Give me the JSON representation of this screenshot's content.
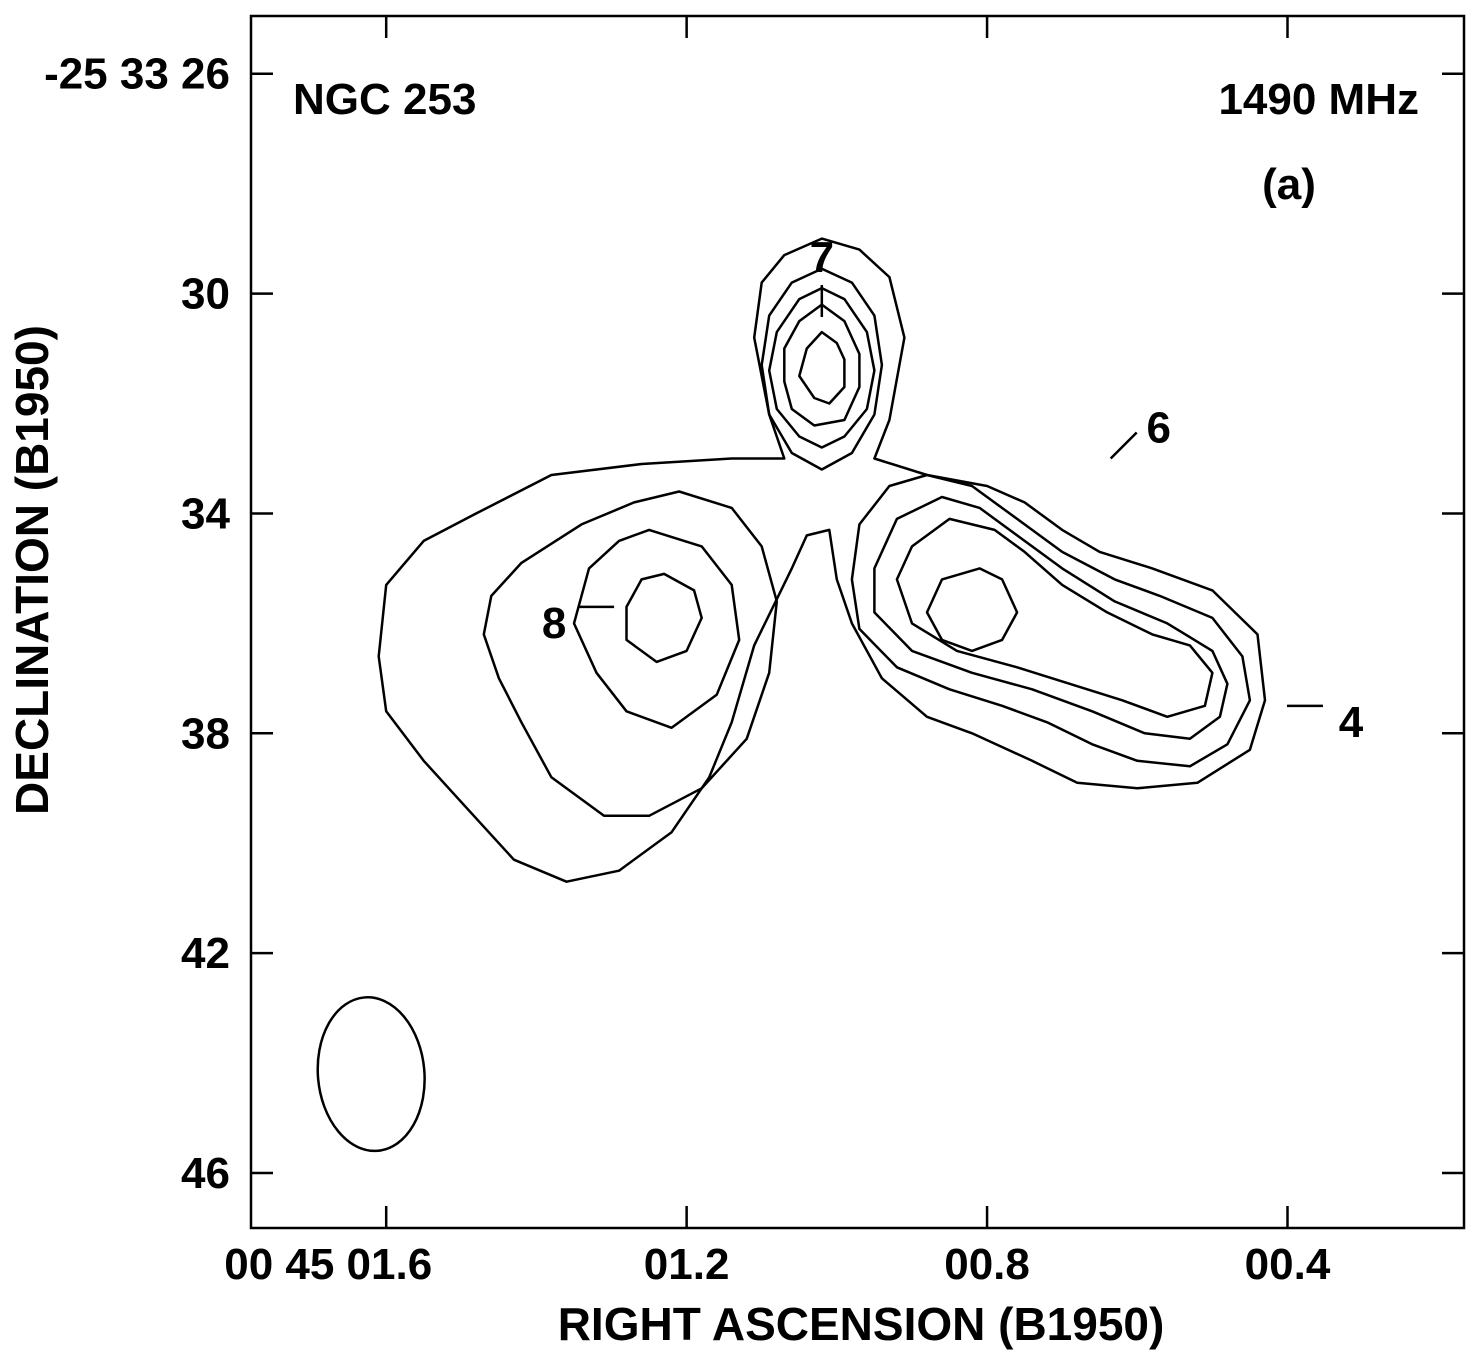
{
  "chart_data": {
    "type": "contour",
    "object_label": "NGC 253",
    "frequency_label": "1490 MHz",
    "panel_label": "(a)",
    "xlabel": "RIGHT ASCENSION (B1950)",
    "ylabel": "DECLINATION (B1950)",
    "x_ticks": [
      {
        "value": 1.6,
        "label": "00 45 01.6"
      },
      {
        "value": 1.2,
        "label": "01.2"
      },
      {
        "value": 0.8,
        "label": "00.8"
      },
      {
        "value": 0.4,
        "label": "00.4"
      }
    ],
    "y_ticks": [
      {
        "value": 26,
        "label": "-25 33 26"
      },
      {
        "value": 30,
        "label": "30"
      },
      {
        "value": 34,
        "label": "34"
      },
      {
        "value": 38,
        "label": "38"
      },
      {
        "value": 42,
        "label": "42"
      },
      {
        "value": 46,
        "label": "46"
      }
    ],
    "xlim": [
      1.78,
      0.165
    ],
    "ylim": [
      47.0,
      24.95
    ],
    "sources": [
      {
        "id": "7",
        "label": "7",
        "ra": 1.02,
        "dec": 31.3
      },
      {
        "id": "6",
        "label": "6",
        "ra": 0.67,
        "dec": 33.4
      },
      {
        "id": "8",
        "label": "8",
        "ra": 1.23,
        "dec": 35.7
      },
      {
        "id": "4",
        "label": "4",
        "ra": 0.43,
        "dec": 37.5
      }
    ],
    "beam": {
      "ra": 1.62,
      "dec": 44.2,
      "major_arcsec": 2.8,
      "minor_arcsec": 1.25,
      "pa_deg": 5
    },
    "contours": [
      {
        "level": 1,
        "points": [
          [
            1.07,
            33.0
          ],
          [
            1.09,
            32.2
          ],
          [
            1.11,
            30.8
          ],
          [
            1.1,
            29.8
          ],
          [
            1.07,
            29.3
          ],
          [
            1.02,
            29.0
          ],
          [
            0.97,
            29.2
          ],
          [
            0.93,
            29.7
          ],
          [
            0.91,
            30.8
          ],
          [
            0.93,
            32.3
          ],
          [
            0.95,
            33.0
          ],
          [
            0.88,
            33.3
          ],
          [
            0.8,
            33.5
          ],
          [
            0.75,
            33.8
          ],
          [
            0.7,
            34.3
          ],
          [
            0.65,
            34.7
          ],
          [
            0.58,
            35.0
          ],
          [
            0.5,
            35.4
          ],
          [
            0.44,
            36.2
          ],
          [
            0.43,
            37.4
          ],
          [
            0.45,
            38.3
          ],
          [
            0.52,
            38.9
          ],
          [
            0.6,
            39.0
          ],
          [
            0.68,
            38.9
          ],
          [
            0.74,
            38.5
          ],
          [
            0.82,
            38.0
          ],
          [
            0.88,
            37.7
          ],
          [
            0.94,
            37.0
          ],
          [
            0.98,
            36.0
          ],
          [
            1.0,
            35.2
          ],
          [
            1.01,
            34.3
          ],
          [
            1.04,
            34.4
          ],
          [
            1.06,
            35.0
          ],
          [
            1.11,
            36.4
          ],
          [
            1.14,
            37.8
          ],
          [
            1.17,
            38.8
          ],
          [
            1.22,
            39.8
          ],
          [
            1.29,
            40.5
          ],
          [
            1.36,
            40.7
          ],
          [
            1.43,
            40.3
          ],
          [
            1.49,
            39.4
          ],
          [
            1.55,
            38.5
          ],
          [
            1.6,
            37.6
          ],
          [
            1.61,
            36.6
          ],
          [
            1.6,
            35.3
          ],
          [
            1.55,
            34.5
          ],
          [
            1.48,
            34.0
          ],
          [
            1.38,
            33.3
          ],
          [
            1.26,
            33.1
          ],
          [
            1.14,
            33.0
          ],
          [
            1.07,
            33.0
          ]
        ]
      },
      {
        "level": 2,
        "points": [
          [
            1.02,
            29.55
          ],
          [
            1.06,
            29.8
          ],
          [
            1.09,
            30.4
          ],
          [
            1.1,
            31.3
          ],
          [
            1.09,
            32.2
          ],
          [
            1.06,
            32.9
          ],
          [
            1.02,
            33.2
          ],
          [
            0.98,
            32.9
          ],
          [
            0.95,
            32.2
          ],
          [
            0.94,
            31.3
          ],
          [
            0.95,
            30.4
          ],
          [
            0.98,
            29.8
          ],
          [
            1.02,
            29.55
          ]
        ]
      },
      {
        "level": 3,
        "points": [
          [
            1.02,
            29.9
          ],
          [
            1.05,
            30.1
          ],
          [
            1.08,
            30.7
          ],
          [
            1.09,
            31.4
          ],
          [
            1.08,
            32.1
          ],
          [
            1.05,
            32.6
          ],
          [
            1.02,
            32.8
          ],
          [
            0.99,
            32.6
          ],
          [
            0.96,
            32.1
          ],
          [
            0.95,
            31.4
          ],
          [
            0.96,
            30.7
          ],
          [
            0.99,
            30.1
          ],
          [
            1.02,
            29.9
          ]
        ]
      },
      {
        "level": 4,
        "points": [
          [
            1.02,
            30.2
          ],
          [
            1.05,
            30.5
          ],
          [
            1.07,
            31.0
          ],
          [
            1.07,
            31.6
          ],
          [
            1.06,
            32.1
          ],
          [
            1.03,
            32.4
          ],
          [
            0.99,
            32.3
          ],
          [
            0.97,
            31.7
          ],
          [
            0.97,
            31.1
          ],
          [
            0.99,
            30.5
          ],
          [
            1.02,
            30.2
          ]
        ]
      },
      {
        "level": 5,
        "points": [
          [
            1.02,
            30.7
          ],
          [
            1.04,
            31.0
          ],
          [
            1.05,
            31.5
          ],
          [
            1.03,
            31.9
          ],
          [
            1.01,
            32.0
          ],
          [
            0.99,
            31.7
          ],
          [
            0.99,
            31.2
          ],
          [
            1.0,
            30.9
          ],
          [
            1.02,
            30.7
          ]
        ]
      },
      {
        "level": 2,
        "points": [
          [
            1.21,
            33.6
          ],
          [
            1.14,
            33.9
          ],
          [
            1.1,
            34.6
          ],
          [
            1.08,
            35.6
          ],
          [
            1.09,
            36.9
          ],
          [
            1.12,
            38.1
          ],
          [
            1.18,
            39.0
          ],
          [
            1.25,
            39.5
          ],
          [
            1.31,
            39.5
          ],
          [
            1.38,
            38.8
          ],
          [
            1.42,
            37.8
          ],
          [
            1.45,
            37.0
          ],
          [
            1.47,
            36.2
          ],
          [
            1.46,
            35.5
          ],
          [
            1.42,
            34.9
          ],
          [
            1.34,
            34.2
          ],
          [
            1.27,
            33.8
          ],
          [
            1.21,
            33.6
          ]
        ]
      },
      {
        "level": 3,
        "points": [
          [
            1.25,
            34.3
          ],
          [
            1.18,
            34.6
          ],
          [
            1.14,
            35.3
          ],
          [
            1.13,
            36.3
          ],
          [
            1.16,
            37.3
          ],
          [
            1.22,
            37.9
          ],
          [
            1.28,
            37.6
          ],
          [
            1.32,
            36.9
          ],
          [
            1.35,
            36.0
          ],
          [
            1.33,
            35.0
          ],
          [
            1.29,
            34.5
          ],
          [
            1.25,
            34.3
          ]
        ]
      },
      {
        "level": 4,
        "points": [
          [
            1.23,
            35.1
          ],
          [
            1.19,
            35.4
          ],
          [
            1.18,
            35.9
          ],
          [
            1.2,
            36.5
          ],
          [
            1.24,
            36.7
          ],
          [
            1.28,
            36.3
          ],
          [
            1.28,
            35.7
          ],
          [
            1.26,
            35.2
          ],
          [
            1.23,
            35.1
          ]
        ]
      },
      {
        "level": 2,
        "points": [
          [
            0.88,
            33.3
          ],
          [
            0.93,
            33.5
          ],
          [
            0.97,
            34.2
          ],
          [
            0.98,
            35.2
          ],
          [
            0.97,
            36.1
          ],
          [
            0.92,
            36.8
          ],
          [
            0.85,
            37.2
          ],
          [
            0.78,
            37.5
          ],
          [
            0.72,
            37.8
          ],
          [
            0.66,
            38.2
          ],
          [
            0.6,
            38.5
          ],
          [
            0.53,
            38.6
          ],
          [
            0.48,
            38.2
          ],
          [
            0.45,
            37.4
          ],
          [
            0.46,
            36.6
          ],
          [
            0.5,
            35.9
          ],
          [
            0.57,
            35.5
          ],
          [
            0.63,
            35.2
          ],
          [
            0.7,
            34.7
          ],
          [
            0.76,
            34.1
          ],
          [
            0.82,
            33.5
          ],
          [
            0.88,
            33.3
          ]
        ]
      },
      {
        "level": 3,
        "points": [
          [
            0.86,
            33.7
          ],
          [
            0.92,
            34.1
          ],
          [
            0.95,
            35.0
          ],
          [
            0.95,
            35.8
          ],
          [
            0.9,
            36.5
          ],
          [
            0.82,
            36.9
          ],
          [
            0.74,
            37.2
          ],
          [
            0.66,
            37.6
          ],
          [
            0.59,
            38.0
          ],
          [
            0.53,
            38.1
          ],
          [
            0.49,
            37.7
          ],
          [
            0.48,
            37.1
          ],
          [
            0.5,
            36.5
          ],
          [
            0.56,
            36.0
          ],
          [
            0.63,
            35.6
          ],
          [
            0.7,
            35.0
          ],
          [
            0.76,
            34.4
          ],
          [
            0.81,
            33.9
          ],
          [
            0.86,
            33.7
          ]
        ]
      },
      {
        "level": 4,
        "points": [
          [
            0.85,
            34.1
          ],
          [
            0.9,
            34.6
          ],
          [
            0.92,
            35.2
          ],
          [
            0.9,
            36.0
          ],
          [
            0.84,
            36.5
          ],
          [
            0.76,
            36.8
          ],
          [
            0.69,
            37.1
          ],
          [
            0.62,
            37.4
          ],
          [
            0.56,
            37.7
          ],
          [
            0.51,
            37.5
          ],
          [
            0.5,
            36.9
          ],
          [
            0.53,
            36.4
          ],
          [
            0.58,
            36.2
          ],
          [
            0.64,
            35.8
          ],
          [
            0.7,
            35.3
          ],
          [
            0.75,
            34.7
          ],
          [
            0.79,
            34.3
          ],
          [
            0.85,
            34.1
          ]
        ]
      },
      {
        "level": 5,
        "points": [
          [
            0.81,
            35.0
          ],
          [
            0.86,
            35.2
          ],
          [
            0.88,
            35.8
          ],
          [
            0.86,
            36.3
          ],
          [
            0.82,
            36.5
          ],
          [
            0.78,
            36.3
          ],
          [
            0.76,
            35.8
          ],
          [
            0.78,
            35.2
          ],
          [
            0.81,
            35.0
          ]
        ]
      }
    ]
  }
}
